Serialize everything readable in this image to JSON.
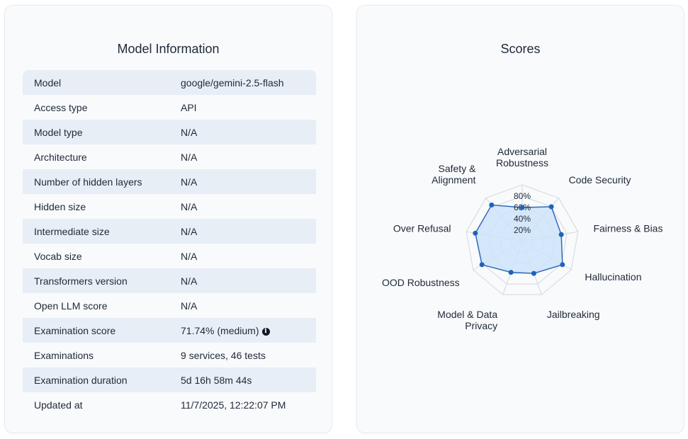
{
  "model_info": {
    "title": "Model Information",
    "rows": [
      {
        "key": "Model",
        "value": "google/gemini-2.5-flash"
      },
      {
        "key": "Access type",
        "value": "API"
      },
      {
        "key": "Model type",
        "value": "N/A"
      },
      {
        "key": "Architecture",
        "value": "N/A"
      },
      {
        "key": "Number of hidden layers",
        "value": "N/A"
      },
      {
        "key": "Hidden size",
        "value": "N/A"
      },
      {
        "key": "Intermediate size",
        "value": "N/A"
      },
      {
        "key": "Vocab size",
        "value": "N/A"
      },
      {
        "key": "Transformers version",
        "value": "N/A"
      },
      {
        "key": "Open LLM score",
        "value": "N/A"
      },
      {
        "key": "Examination score",
        "value": "71.74% (medium)"
      },
      {
        "key": "Examinations",
        "value": "9 services, 46 tests"
      },
      {
        "key": "Examination duration",
        "value": "5d 16h 58m 44s"
      },
      {
        "key": "Updated at",
        "value": "11/7/2025, 12:22:07 PM"
      }
    ],
    "info_icon": "info-circle-icon"
  },
  "scores": {
    "title": "Scores",
    "colors": {
      "fill": "#cfe3fa",
      "stroke": "#2f6bb8",
      "point": "#1f63b8",
      "grid": "#d5d8dc"
    },
    "chart_data": {
      "type": "radar",
      "axes": [
        "Adversarial Robustness",
        "Code Security",
        "Fairness & Bias",
        "Hallucination",
        "Jailbreaking",
        "Model & Data Privacy",
        "OOD Robustness",
        "Over Refusal",
        "Safety & Alignment"
      ],
      "axis_label_lines": [
        [
          "Adversarial",
          "Robustness"
        ],
        [
          "Code Security"
        ],
        [
          "Fairness & Bias"
        ],
        [
          "Hallucination"
        ],
        [
          "Jailbreaking"
        ],
        [
          "Model & Data",
          "Privacy"
        ],
        [
          "OOD Robustness"
        ],
        [
          "Over Refusal"
        ],
        [
          "Safety &",
          "Alignment"
        ]
      ],
      "values": [
        60,
        80,
        70,
        82,
        60,
        58,
        82,
        84,
        84
      ],
      "r_range": [
        0,
        100
      ],
      "r_ticks": [
        20,
        40,
        60,
        80
      ],
      "r_tick_labels": [
        "20%",
        "40%",
        "60%",
        "80%"
      ],
      "grid": true,
      "legend": "none"
    }
  }
}
